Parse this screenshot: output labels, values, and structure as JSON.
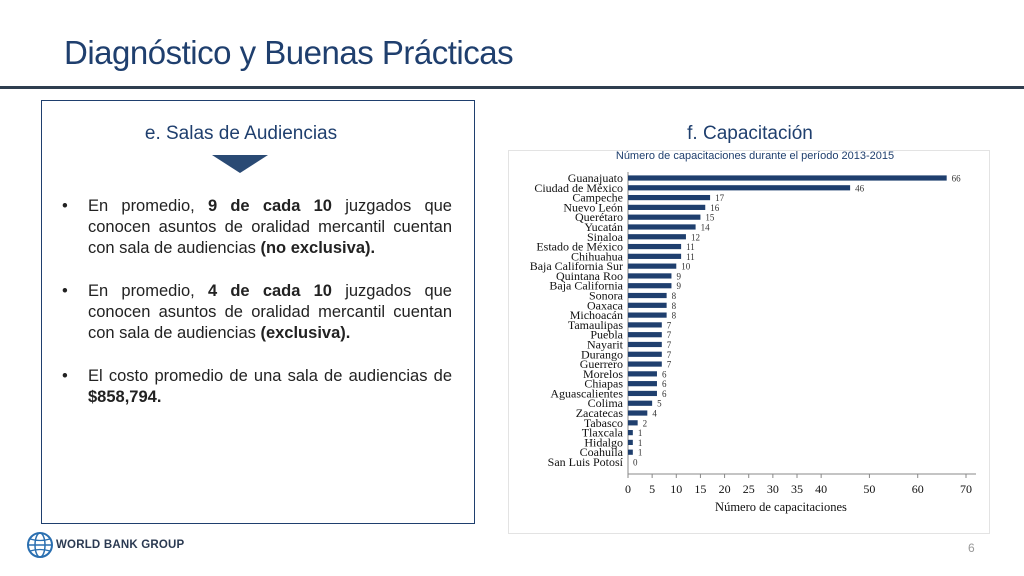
{
  "slide": {
    "title": "Diagnóstico y Buenas Prácticas",
    "page_number": "6",
    "logo_text": "WORLD BANK GROUP"
  },
  "left_section": {
    "heading": "e. Salas de Audiencias",
    "bullet_char": "•",
    "bullets": [
      {
        "pre": "En promedio, ",
        "bold1": "9 de cada 10",
        "mid": " juzgados que conocen asuntos de oralidad mercantil cuentan con sala de audiencias ",
        "bold2": "(no exclusiva)."
      },
      {
        "pre": "En promedio, ",
        "bold1": "4 de cada 10",
        "mid": " juzgados que conocen asuntos de oralidad mercantil cuentan con sala de audiencias ",
        "bold2": "(exclusiva)."
      },
      {
        "pre": "El costo promedio de una sala de audiencias de ",
        "bold1": "$858,794.",
        "mid": "",
        "bold2": ""
      }
    ]
  },
  "right_section": {
    "heading": "f. Capacitación",
    "chart_subtitle": "Número de capacitaciones durante el período 2013-2015"
  },
  "chart_data": {
    "type": "bar",
    "orientation": "horizontal",
    "title": "Número de capacitaciones durante el período 2013-2015",
    "xlabel": "Número de capacitaciones",
    "ylabel": "",
    "categories": [
      "Guanajuato",
      "Ciudad de México",
      "Campeche",
      "Nuevo León",
      "Querétaro",
      "Yucatán",
      "Sinaloa",
      "Estado de México",
      "Chihuahua",
      "Baja California Sur",
      "Quintana Roo",
      "Baja California",
      "Sonora",
      "Oaxaca",
      "Michoacán",
      "Tamaulipas",
      "Puebla",
      "Nayarit",
      "Durango",
      "Guerrero",
      "Morelos",
      "Chiapas",
      "Aguascalientes",
      "Colima",
      "Zacatecas",
      "Tabasco",
      "Tlaxcala",
      "Hidalgo",
      "Coahuila",
      "San Luis Potosí"
    ],
    "values": [
      66,
      46,
      17,
      16,
      15,
      14,
      12,
      11,
      11,
      10,
      9,
      9,
      8,
      8,
      8,
      7,
      7,
      7,
      7,
      7,
      6,
      6,
      6,
      5,
      4,
      2,
      1,
      1,
      1,
      0
    ],
    "x_ticks": [
      0,
      5,
      10,
      15,
      20,
      25,
      30,
      35,
      40,
      50,
      60,
      70
    ],
    "xlim": [
      0,
      70
    ],
    "bar_color": "#1f3f6e",
    "grid": false
  }
}
